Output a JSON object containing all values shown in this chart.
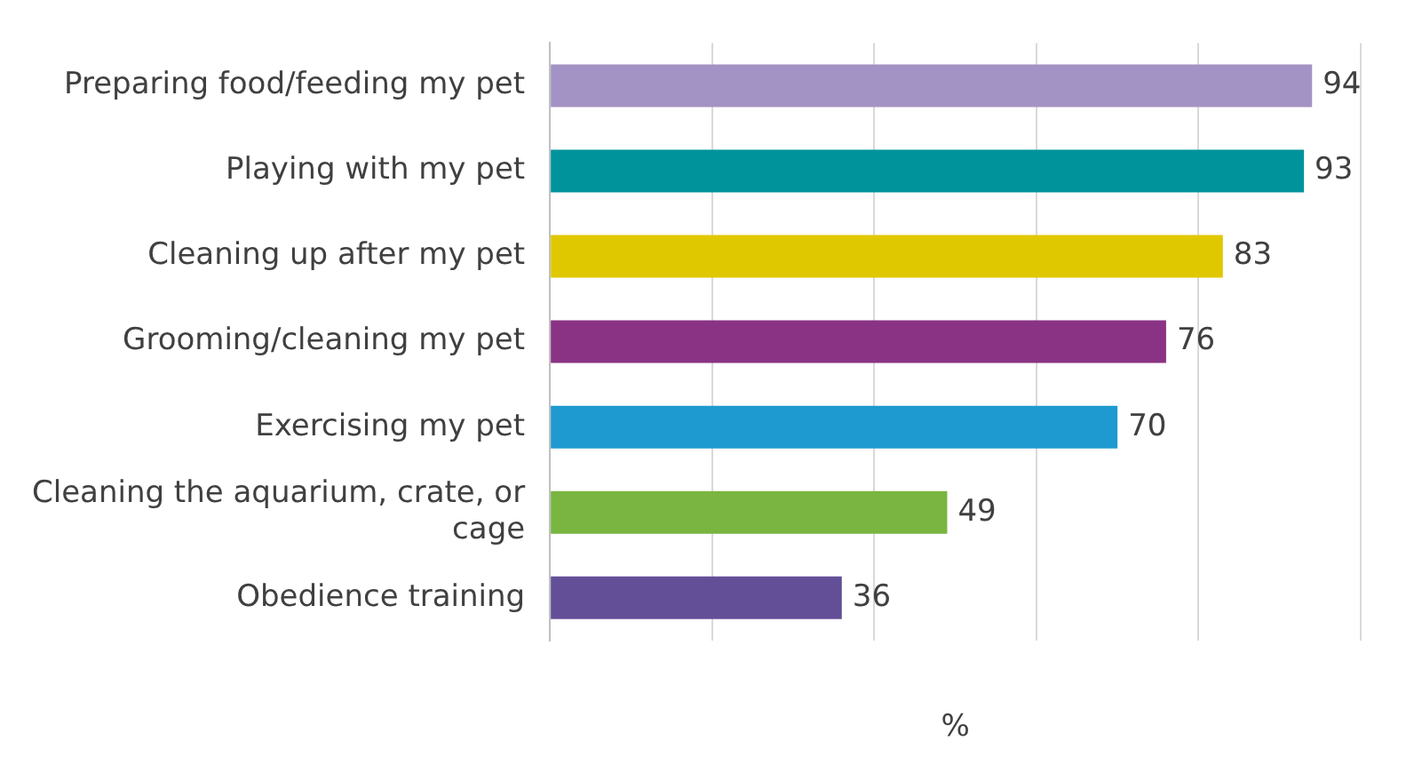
{
  "chart_data": {
    "type": "bar",
    "orientation": "horizontal",
    "xlabel": "%",
    "categories": [
      "Preparing food/feeding my pet",
      "Playing with my pet",
      "Cleaning up after my pet",
      "Grooming/cleaning my pet",
      "Exercising my pet",
      "Cleaning the aquarium, crate, or cage",
      "Obedience training"
    ],
    "values": [
      94,
      93,
      83,
      76,
      70,
      49,
      36
    ],
    "colors": [
      "#a393c4",
      "#00939c",
      "#e0c800",
      "#8a3384",
      "#1e9ad0",
      "#79b540",
      "#634f98"
    ],
    "xlim": [
      0,
      100
    ],
    "xticks": [
      {
        "value": 0,
        "label": null
      },
      {
        "value": 20,
        "label": null
      },
      {
        "value": 40,
        "label": null
      },
      {
        "value": 60,
        "label": null
      },
      {
        "value": 80,
        "label": null
      },
      {
        "value": 100,
        "label": null
      }
    ],
    "grid": "x",
    "data_labels": true,
    "legend": false
  }
}
